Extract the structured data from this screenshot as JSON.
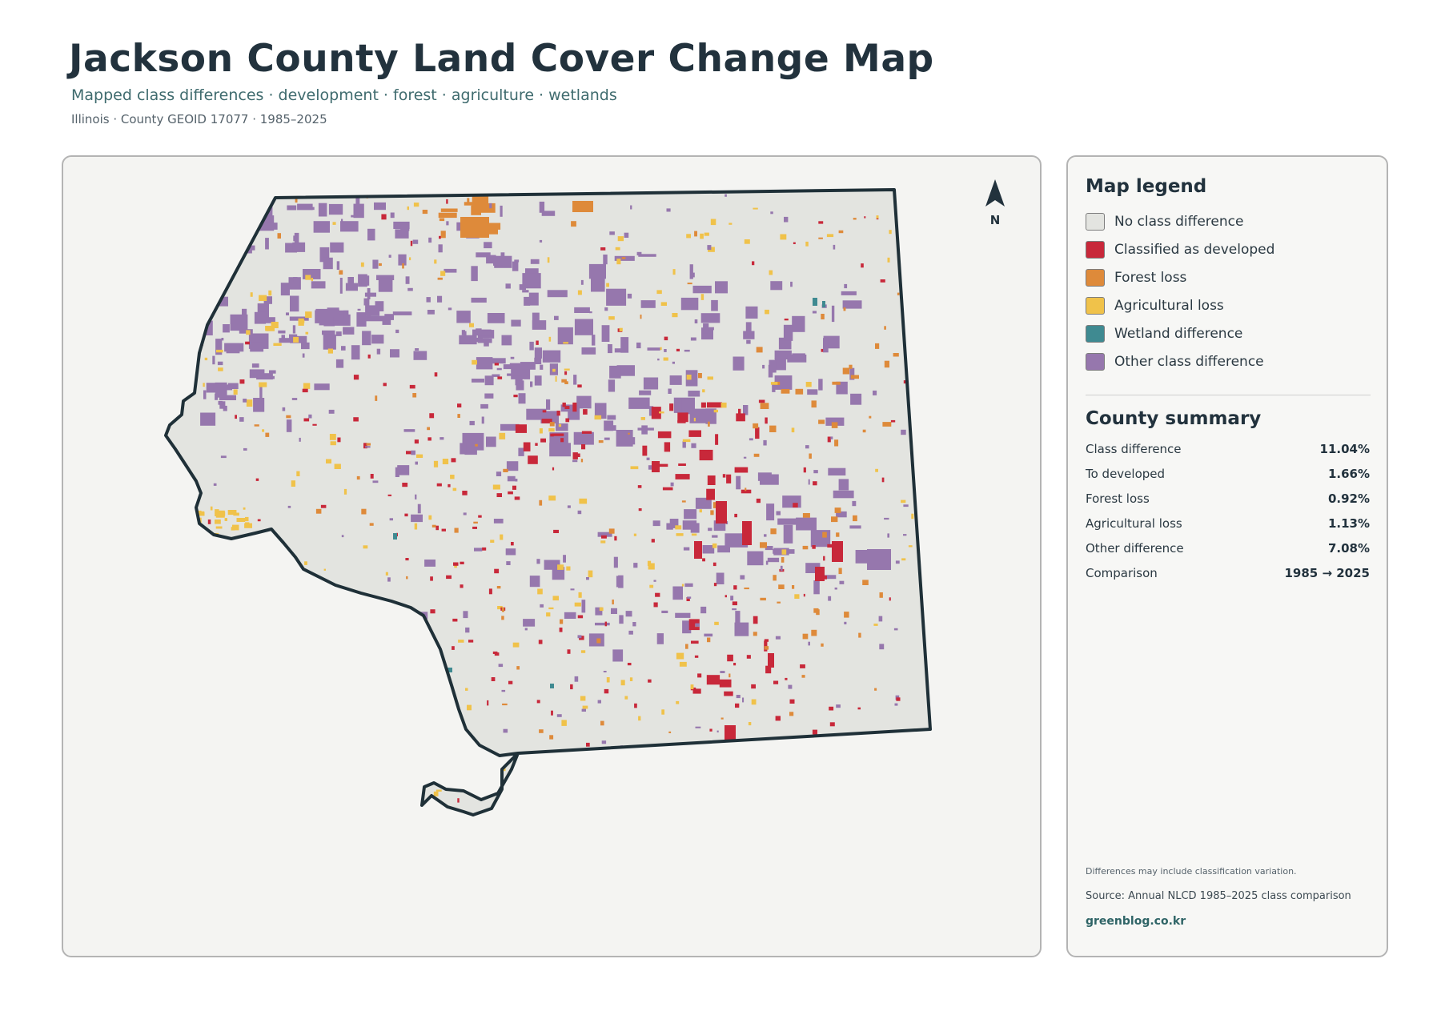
{
  "header": {
    "title": "Jackson County Land Cover Change Map",
    "subtitle": "Mapped class differences · development · forest · agriculture · wetlands",
    "meta": "Illinois · County GEOID 17077 · 1985–2025"
  },
  "map": {
    "north_label": "N",
    "colors": {
      "outline": "#1f3038",
      "no_change": "#e3e4e0",
      "developed": "#c8283a",
      "forest_loss": "#de8a3a",
      "agricultural_loss": "#f0c24a",
      "wetland": "#3f8a91",
      "other": "#9677ad"
    }
  },
  "legend": {
    "heading": "Map legend",
    "items": [
      {
        "label": "No class difference",
        "color": "#e3e4e0"
      },
      {
        "label": "Classified as developed",
        "color": "#c8283a"
      },
      {
        "label": "Forest loss",
        "color": "#de8a3a"
      },
      {
        "label": "Agricultural loss",
        "color": "#f0c24a"
      },
      {
        "label": "Wetland difference",
        "color": "#3f8a91"
      },
      {
        "label": "Other class difference",
        "color": "#9677ad"
      }
    ]
  },
  "summary": {
    "heading": "County summary",
    "rows": [
      {
        "label": "Class difference",
        "value": "11.04%"
      },
      {
        "label": "To developed",
        "value": "1.66%"
      },
      {
        "label": "Forest loss",
        "value": "0.92%"
      },
      {
        "label": "Agricultural loss",
        "value": "1.13%"
      },
      {
        "label": "Other difference",
        "value": "7.08%"
      },
      {
        "label": "Comparison",
        "value": "1985 → 2025"
      }
    ]
  },
  "footer": {
    "note": "Differences may include classification variation.",
    "source": "Source: Annual NLCD 1985–2025 class comparison",
    "site": "greenblog.co.kr"
  }
}
